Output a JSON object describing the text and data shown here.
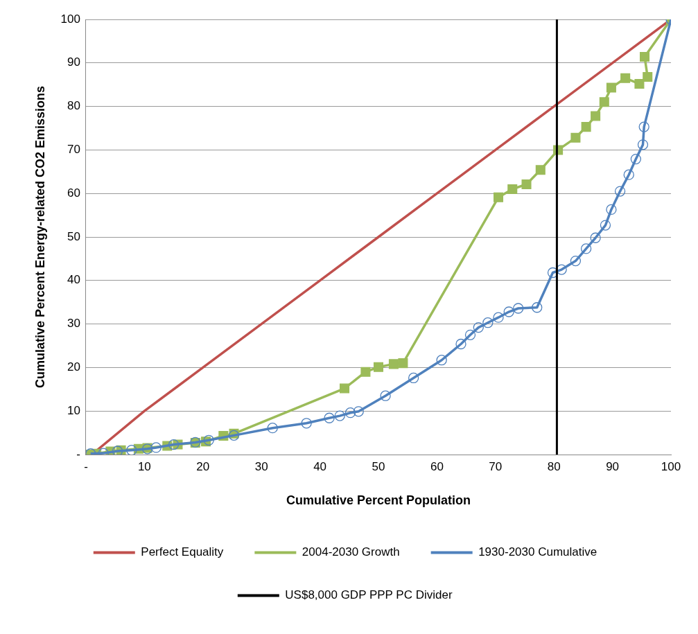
{
  "chart_data": {
    "type": "line",
    "xlabel": "Cumulative Percent Population",
    "ylabel": "Cumulative Percent Energy-related CO2 Emissions",
    "xlim": [
      0,
      100
    ],
    "ylim": [
      0,
      100
    ],
    "xticks": [
      {
        "value": 0,
        "label": "-"
      },
      10,
      20,
      30,
      40,
      50,
      60,
      70,
      80,
      90,
      100
    ],
    "yticks": [
      {
        "value": 0,
        "label": "-"
      },
      10,
      20,
      30,
      40,
      50,
      60,
      70,
      80,
      90,
      100
    ],
    "grid": "y",
    "legend": "bottom",
    "series": [
      {
        "name": "Perfect Equality",
        "color": "#c0504d",
        "marker": "none",
        "x": [
          1,
          10,
          20,
          30,
          40,
          50,
          60,
          70,
          80,
          90,
          100
        ],
        "values": [
          0,
          10,
          20,
          30,
          40,
          50,
          60,
          70,
          80,
          90,
          100
        ]
      },
      {
        "name": "2004-2030 Growth",
        "color": "#9bbb59",
        "marker": "square",
        "x": [
          0.8,
          1.8,
          4.2,
          6,
          9,
          10.5,
          13.9,
          15.7,
          18.7,
          20.5,
          23.5,
          25.3,
          44.2,
          47.8,
          50,
          52.6,
          54.2,
          70.5,
          72.9,
          75.3,
          77.7,
          80.7,
          83.7,
          85.5,
          87.1,
          88.6,
          89.8,
          92.2,
          94.6,
          96,
          95.5,
          100
        ],
        "values": [
          0,
          0.2,
          0.7,
          1,
          1.3,
          1.5,
          2,
          2.3,
          2.7,
          3,
          4.3,
          4.8,
          15.2,
          19,
          20.1,
          20.8,
          21,
          59.1,
          61,
          62.1,
          65.4,
          70,
          72.8,
          75.3,
          77.8,
          81,
          84.3,
          86.5,
          85.2,
          86.8,
          91.4,
          100
        ]
      },
      {
        "name": "1930-2030 Cumulative",
        "color": "#4f81bd",
        "marker": "circle",
        "x": [
          0.8,
          3,
          5.4,
          7.8,
          10.5,
          12,
          15,
          18.7,
          21,
          25.3,
          31.9,
          37.7,
          41.6,
          43.4,
          45.2,
          46.6,
          51.2,
          56,
          60.8,
          64.1,
          65.7,
          67.1,
          68.7,
          70.5,
          72.3,
          73.9,
          77.1,
          79.8,
          81.3,
          83.7,
          85.5,
          87.1,
          88.8,
          89.8,
          91.3,
          92.8,
          94,
          95.2,
          95.4,
          100
        ],
        "values": [
          0.2,
          0.3,
          0.8,
          1,
          1.3,
          1.6,
          2.3,
          2.8,
          3.3,
          4.4,
          6.1,
          7.2,
          8.4,
          8.9,
          9.6,
          9.9,
          13.5,
          17.6,
          21.7,
          25.4,
          27.5,
          29.2,
          30.3,
          31.5,
          32.8,
          33.6,
          33.8,
          41.8,
          42.5,
          44.5,
          47.3,
          49.8,
          52.7,
          56.3,
          60.5,
          64.3,
          67.9,
          71.2,
          75.3,
          100
        ]
      }
    ],
    "ref_lines": [
      {
        "axis": "x",
        "value": 80.5,
        "label": "US$8,000 GDP PPP PC Divider",
        "color": "#000000"
      }
    ]
  }
}
